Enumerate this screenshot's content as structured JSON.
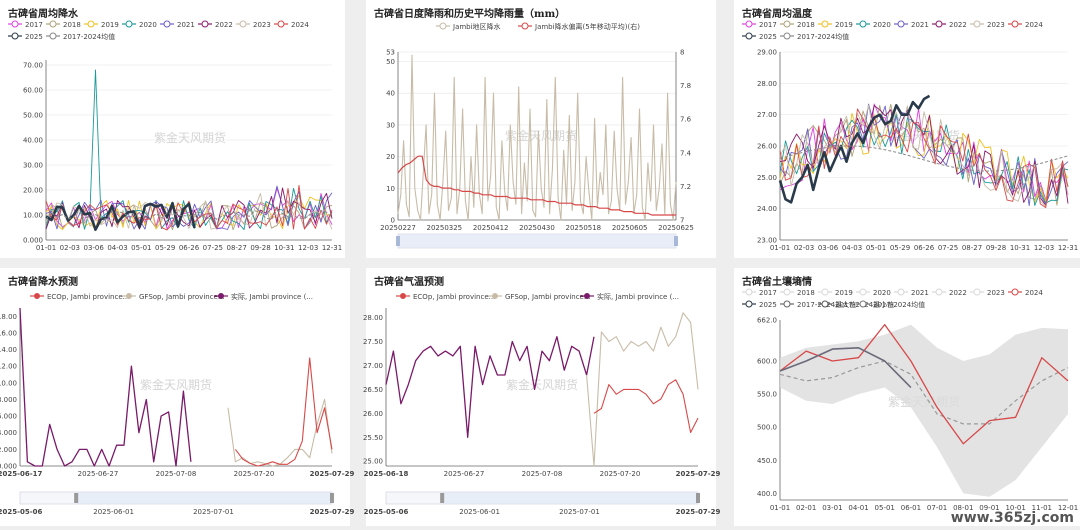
{
  "watermark": "紫金天风期货",
  "site_watermark": "www.365zj.com",
  "palette": {
    "2017": "#e040e0",
    "2018": "#b0a27a",
    "2019": "#f0c020",
    "2020": "#1a9a9a",
    "2021": "#6a60c8",
    "2022": "#8a1a6a",
    "2023": "#c8bca8",
    "2024": "#d84848",
    "2025": "#2a3a4a",
    "avg": "#888888"
  },
  "chart_data": [
    {
      "id": "weekly-rain",
      "type": "line",
      "title": "古碑省周均降水",
      "legend": [
        "2017",
        "2018",
        "2019",
        "2020",
        "2021",
        "2022",
        "2023",
        "2024",
        "2025",
        "2017-2024均值"
      ],
      "x_ticks": [
        "01-01",
        "02-03",
        "03-06",
        "04-03",
        "05-01",
        "05-29",
        "06-26",
        "07-25",
        "08-27",
        "09-28",
        "10-31",
        "12-03",
        "12-31"
      ],
      "y_ticks": [
        "0.000",
        "10.00",
        "20.00",
        "30.00",
        "40.00",
        "50.00",
        "60.00",
        "70.00"
      ],
      "ylim": [
        0,
        72
      ],
      "weeks": 53,
      "spike": {
        "series": "2020",
        "week": 9,
        "value": 68
      }
    },
    {
      "id": "daily-rain",
      "type": "line",
      "title": "古碑省日度降雨和历史平均降雨量（mm）",
      "legend": [
        "Jambi地区降水",
        "Jambi降水偏离(5年移动平均)(右)"
      ],
      "x_ticks": [
        "20250227",
        "20250325",
        "20250412",
        "20250430",
        "20250518",
        "20250605",
        "20250625"
      ],
      "y_left_ticks": [
        "0",
        "10",
        "20",
        "30",
        "40",
        "50",
        "53"
      ],
      "y_right_ticks": [
        "7",
        "7.2",
        "7.4",
        "7.6",
        "7.8",
        "8"
      ],
      "ylim_left": [
        0,
        53
      ],
      "ylim_right": [
        7,
        8
      ],
      "series_rain": [
        2,
        8,
        25,
        5,
        1,
        52,
        10,
        3,
        0,
        15,
        30,
        2,
        8,
        40,
        5,
        0,
        12,
        28,
        3,
        7,
        45,
        2,
        10,
        35,
        6,
        0,
        20,
        4,
        30,
        8,
        2,
        45,
        6,
        14,
        40,
        4,
        0,
        25,
        9,
        3,
        30,
        12,
        5,
        42,
        2,
        18,
        6,
        35,
        3,
        1,
        28,
        10,
        4,
        38,
        2,
        16,
        45,
        7,
        0,
        22,
        5,
        33,
        3,
        12,
        40,
        6,
        2,
        20,
        9,
        0,
        32,
        4,
        15,
        8,
        30,
        2,
        6,
        28,
        10,
        3,
        45,
        5,
        12,
        26,
        2,
        8,
        35,
        4,
        0,
        18,
        6,
        30,
        3,
        10,
        24,
        2,
        40,
        5,
        0,
        12
      ],
      "series_dev": [
        7.28,
        7.31,
        7.33,
        7.34,
        7.36,
        7.38,
        7.38,
        7.24,
        7.21,
        7.2,
        7.2,
        7.19,
        7.19,
        7.19,
        7.18,
        7.18,
        7.17,
        7.17,
        7.17,
        7.16,
        7.16,
        7.15,
        7.15,
        7.15,
        7.14,
        7.14,
        7.14,
        7.14,
        7.13,
        7.13,
        7.13,
        7.13,
        7.13,
        7.12,
        7.12,
        7.12,
        7.12,
        7.11,
        7.11,
        7.11,
        7.1,
        7.1,
        7.1,
        7.1,
        7.09,
        7.09,
        7.09,
        7.08,
        7.08,
        7.08,
        7.07,
        7.07,
        7.07,
        7.06,
        7.06,
        7.06,
        7.05,
        7.05,
        7.05,
        7.04,
        7.04,
        7.04,
        7.04,
        7.03,
        7.03,
        7.03,
        7.03,
        7.03,
        7.03,
        7.03
      ]
    },
    {
      "id": "weekly-temp",
      "type": "line",
      "title": "古碑省周均温度",
      "legend": [
        "2017",
        "2018",
        "2019",
        "2020",
        "2021",
        "2022",
        "2023",
        "2024",
        "2025",
        "2017-2024均值"
      ],
      "x_ticks": [
        "01-01",
        "02-03",
        "03-06",
        "04-03",
        "05-01",
        "05-29",
        "06-26",
        "07-25",
        "08-27",
        "09-28",
        "10-31",
        "12-03",
        "12-31"
      ],
      "y_ticks": [
        "23.00",
        "24.00",
        "25.00",
        "26.00",
        "27.00",
        "28.00",
        "29.00"
      ],
      "ylim": [
        23,
        29
      ],
      "weeks": 53
    },
    {
      "id": "rain-forecast",
      "type": "line",
      "title": "古碑省降水预测",
      "legend": [
        "ECOp, Jambi province...",
        "GFSop, Jambi province...",
        "实际, Jambi province (..."
      ],
      "x_ticks": [
        "2025-06-17",
        "2025-06-27",
        "2025-07-08",
        "2025-07-20",
        "2025-07-29"
      ],
      "y_ticks": [
        "0.000",
        "2.000",
        "4.000",
        "6.000",
        "8.000",
        "10.00",
        "12.00",
        "14.00",
        "16.00",
        "18.00"
      ],
      "ylim": [
        0,
        19
      ],
      "slider_ticks": [
        "2025-05-06",
        "2025-06-01",
        "2025-07-01",
        "2025-07-29"
      ],
      "actual": [
        19,
        0.5,
        0,
        0,
        5,
        2,
        0,
        0.5,
        2,
        2,
        0,
        2,
        0,
        2.5,
        2.5,
        12,
        4,
        8,
        0.5,
        6,
        6.5,
        0,
        9,
        0.5
      ],
      "eco": [
        2,
        0.8,
        0.3,
        0,
        0.2,
        0.5,
        0.2,
        0.2,
        0.8,
        3,
        13,
        4,
        7,
        2
      ],
      "gfs": [
        7,
        0.5,
        1,
        0.3,
        0.5,
        0.3,
        0,
        0.2,
        1,
        2,
        2,
        1,
        5,
        8,
        1.5
      ]
    },
    {
      "id": "temp-forecast",
      "type": "line",
      "title": "古碑省气温预测",
      "legend": [
        "ECOp, Jambi province...",
        "GFSop, Jambi province...",
        "实际, Jambi province (..."
      ],
      "x_ticks": [
        "2025-06-18",
        "2025-06-27",
        "2025-07-08",
        "2025-07-20",
        "2025-07-29"
      ],
      "y_ticks": [
        "25.00",
        "25.50",
        "26.00",
        "26.50",
        "27.00",
        "27.50",
        "28.00"
      ],
      "ylim": [
        24.9,
        28.2
      ],
      "slider_ticks": [
        "2025-05-06",
        "2025-06-01",
        "2025-07-01",
        "2025-07-29"
      ],
      "actual": [
        26.6,
        27.3,
        26.2,
        26.6,
        27.1,
        27.3,
        27.4,
        27.2,
        27.3,
        27.2,
        27.4,
        25.5,
        27.4,
        26.6,
        27.2,
        26.8,
        26.8,
        27.5,
        27.1,
        27.4,
        26.5,
        27.3,
        27.1,
        27.6,
        26.9,
        27.4,
        27.3,
        26.8,
        27.6
      ],
      "eco": [
        26.0,
        26.1,
        26.6,
        26.4,
        26.5,
        26.5,
        26.5,
        26.4,
        26.2,
        26.3,
        26.6,
        26.7,
        26.4,
        25.6,
        25.9
      ],
      "gfs": [
        26.8,
        24.9,
        27.7,
        27.5,
        27.6,
        27.3,
        27.5,
        27.4,
        27.5,
        27.3,
        27.8,
        27.4,
        27.6,
        28.1,
        27.9,
        26.5
      ]
    },
    {
      "id": "soil-moisture",
      "type": "line",
      "title": "古碑省土壤墒情",
      "legend": [
        "2017",
        "2018",
        "2019",
        "2020",
        "2021",
        "2022",
        "2023",
        "2024",
        "2025",
        "2017-2024最大值",
        "2017-2024最小值",
        "2017-2024均值"
      ],
      "x_ticks": [
        "01-01",
        "02-01",
        "03-01",
        "04-01",
        "05-01",
        "06-01",
        "07-01",
        "08-01",
        "09-01",
        "10-01",
        "11-01",
        "12-01"
      ],
      "y_ticks": [
        "400.0",
        "450.0",
        "500.0",
        "550.0",
        "600.0",
        "662.0"
      ],
      "ylim": [
        390,
        662
      ],
      "max": [
        605,
        620,
        625,
        630,
        640,
        655,
        620,
        600,
        610,
        640,
        650,
        648
      ],
      "min": [
        560,
        540,
        535,
        550,
        560,
        530,
        470,
        400,
        395,
        420,
        470,
        520
      ],
      "avg": [
        580,
        570,
        575,
        590,
        600,
        580,
        520,
        505,
        505,
        540,
        570,
        590
      ],
      "y2024": [
        585,
        615,
        600,
        605,
        655,
        600,
        530,
        475,
        510,
        515,
        605,
        570
      ],
      "y2025": [
        585,
        600,
        618,
        620,
        600,
        560
      ]
    }
  ]
}
